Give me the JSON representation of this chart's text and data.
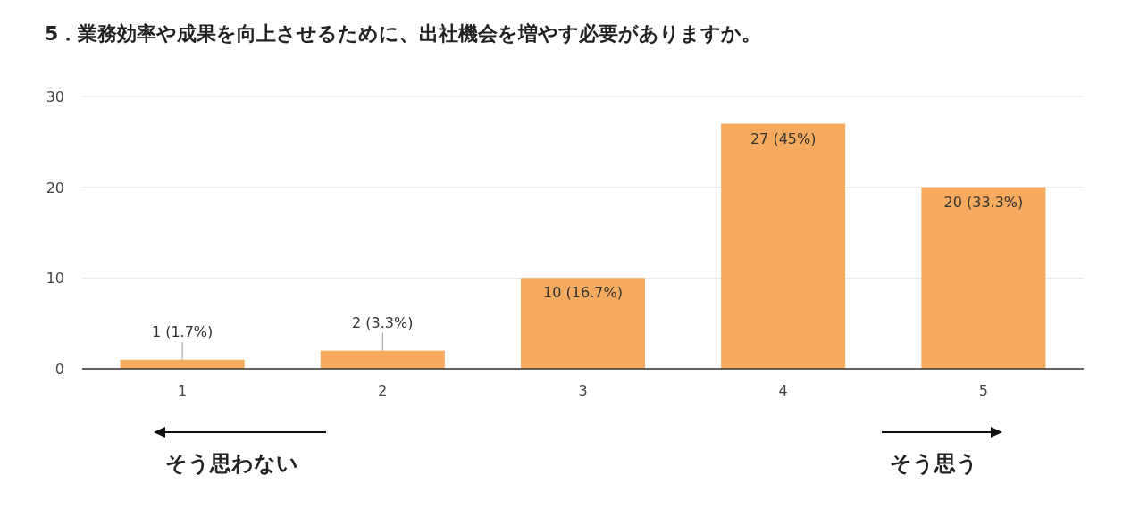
{
  "chart_data": {
    "type": "bar",
    "title": "5．業務効率や成果を向上させるために、出社機会を増やす必要がありますか。",
    "categories": [
      "1",
      "2",
      "3",
      "4",
      "5"
    ],
    "values": [
      1,
      2,
      10,
      27,
      20
    ],
    "value_labels": [
      "1 (1.7%)",
      "2 (3.3%)",
      "10 (16.7%)",
      "27 (45%)",
      "20 (33.3%)"
    ],
    "color": "#f6aa5e",
    "ylim": [
      0,
      30
    ],
    "yticks": [
      0,
      10,
      20,
      30
    ],
    "grid": "y",
    "annotations": [
      "そう思わない",
      "そう思う"
    ]
  }
}
